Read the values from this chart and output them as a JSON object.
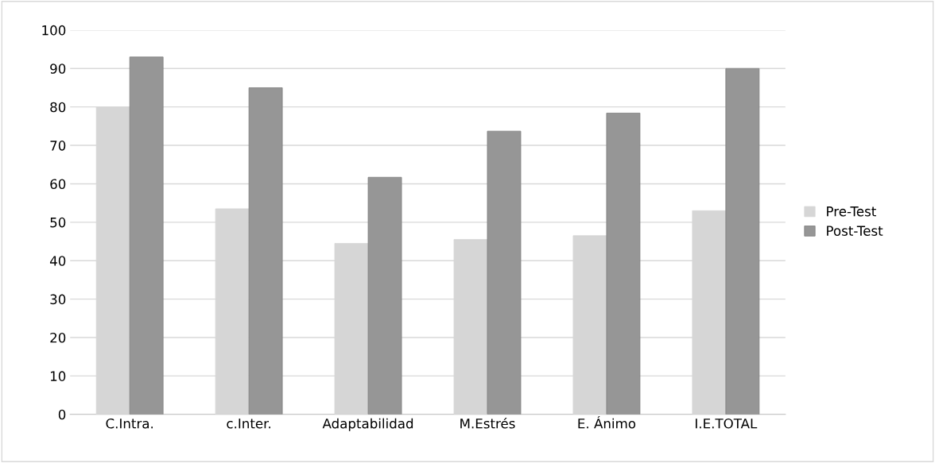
{
  "chart_data": {
    "type": "bar",
    "categories": [
      "C.Intra.",
      "c.Inter.",
      "Adaptabilidad",
      "M.Estrés",
      "E. Ánimo",
      "I.E.TOTAL"
    ],
    "series": [
      {
        "name": "Pre-Test",
        "color": "#d6d6d6",
        "values": [
          80,
          53.5,
          44.5,
          45.5,
          46.5,
          53
        ]
      },
      {
        "name": "Post-Test",
        "color": "#969696",
        "values": [
          93,
          85,
          61.7,
          73.7,
          78.4,
          90
        ]
      }
    ],
    "ylim": [
      0,
      100
    ],
    "yticks": [
      0,
      10,
      20,
      30,
      40,
      50,
      60,
      70,
      80,
      90,
      100
    ],
    "grid": "y",
    "legend": "right"
  }
}
